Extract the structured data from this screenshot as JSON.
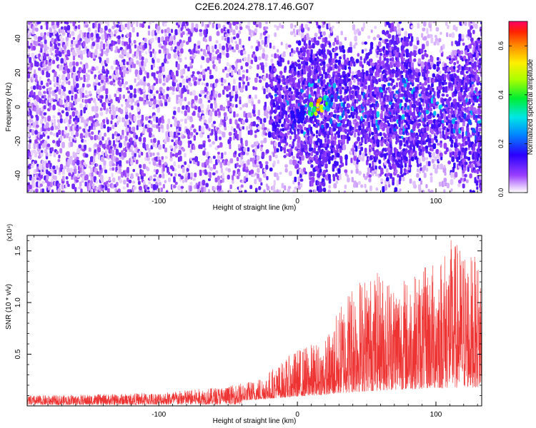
{
  "title": "C2E6.2024.278.17.46.G07",
  "colors": {
    "snr_line": "#ee3333",
    "spectrogram_base": "#7a2cff",
    "colormap": [
      "#b5b5ff",
      "#8a30ff",
      "#3a10ff",
      "#0088ff",
      "#00e6e6",
      "#00ee33",
      "#ccff00",
      "#ffcc00",
      "#ff3300",
      "#ff0066"
    ]
  },
  "chart_data": [
    {
      "type": "heatmap",
      "title": "C2E6.2024.278.17.46.G07",
      "xlabel": "Height of straight line (km)",
      "ylabel": "Frequency (Hz)",
      "xlim": [
        -195,
        133
      ],
      "ylim": [
        -50,
        50
      ],
      "x_ticks": [
        -100,
        0,
        100
      ],
      "x_tick_labels": [
        "-100",
        "0",
        "100"
      ],
      "y_ticks": [
        -40,
        -20,
        0,
        20,
        40
      ],
      "y_tick_labels": [
        "-40",
        "-20",
        "0",
        "20",
        "40"
      ],
      "colorbar": {
        "label": "Normalized spectral amplitude",
        "range": [
          0.0,
          0.7
        ],
        "ticks": [
          0.0,
          0.2,
          0.4,
          0.6
        ],
        "tick_labels": [
          "0.0",
          "0.2",
          "0.4",
          "0.6"
        ]
      },
      "features": {
        "noise_region_x": [
          -195,
          -20
        ],
        "signal_start_x": -20,
        "peak_x": 15,
        "peak_frequency": 0,
        "peak_amplitude": 0.7
      }
    },
    {
      "type": "line",
      "xlabel": "Height of straight line (km)",
      "ylabel": "SNR (10 * v/v)",
      "y_multiplier_label": "(x10⁴)",
      "xlim": [
        -195,
        133
      ],
      "ylim": [
        0,
        16500
      ],
      "x_ticks": [
        -100,
        0,
        100
      ],
      "x_tick_labels": [
        "-100",
        "0",
        "100"
      ],
      "y_ticks": [
        5000,
        10000,
        15000
      ],
      "y_tick_labels": [
        "0.5",
        "1.0",
        "1.5"
      ],
      "envelope": {
        "x": [
          -195,
          -150,
          -100,
          -50,
          -30,
          -10,
          0,
          20,
          40,
          60,
          80,
          100,
          110,
          120,
          133
        ],
        "y": [
          1000,
          1100,
          1300,
          1900,
          2600,
          4400,
          5600,
          6500,
          12500,
          13000,
          12400,
          14200,
          16300,
          15500,
          13800
        ]
      },
      "baseline": {
        "x": [
          -195,
          -100,
          -40,
          -20,
          0,
          20,
          40,
          60,
          80,
          100,
          133
        ],
        "y": [
          300,
          400,
          500,
          700,
          900,
          1100,
          1300,
          1500,
          1600,
          1700,
          1800
        ]
      }
    }
  ]
}
